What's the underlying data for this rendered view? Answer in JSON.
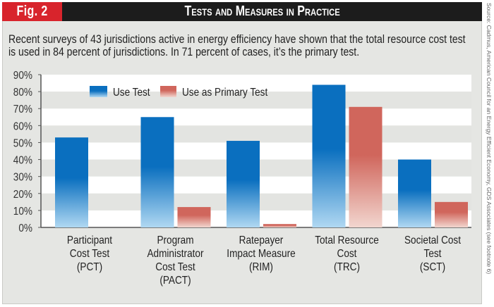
{
  "header": {
    "figure_label": "Fig. 2",
    "title": "Tests and Measures in Practice"
  },
  "intro": "Recent surveys of 43 jurisdictions active in energy efficiency have shown that the total resource cost test is used in 84 percent of jurisdictions. In 71 percent of cases, it’s the primary test.",
  "source": "Source: Cadmus, American Council for an Energy Efficient Economy, GDS Associates (see footnote 6)",
  "colors": {
    "blue": "#0a6fbf",
    "blue_light": "#b0d8f2",
    "red": "#d0665c",
    "red_light": "#f2d6cf",
    "header": "#1c1c1c",
    "fig": "#d8242c"
  },
  "chart_data": {
    "type": "bar",
    "title": "Tests and Measures in Practice",
    "xlabel": "",
    "ylabel": "",
    "ylim": [
      0,
      90
    ],
    "yticks": [
      "0%",
      "10%",
      "20%",
      "30%",
      "40%",
      "50%",
      "60%",
      "70%",
      "80%",
      "90%"
    ],
    "grid": "alternating bands",
    "legend_position": "top-left",
    "categories": [
      [
        "Participant",
        "Cost Test",
        "(PCT)"
      ],
      [
        "Program",
        "Administrator",
        "Cost Test",
        "(PACT)"
      ],
      [
        "Ratepayer",
        "Impact Measure",
        "(RIM)"
      ],
      [
        "Total Resource",
        "Cost",
        "(TRC)"
      ],
      [
        "Societal Cost",
        "Test",
        "(SCT)"
      ]
    ],
    "series": [
      {
        "name": "Use Test",
        "values": [
          53,
          65,
          51,
          84,
          40
        ]
      },
      {
        "name": "Use as Primary Test",
        "values": [
          0,
          12,
          2,
          71,
          15
        ]
      }
    ]
  }
}
